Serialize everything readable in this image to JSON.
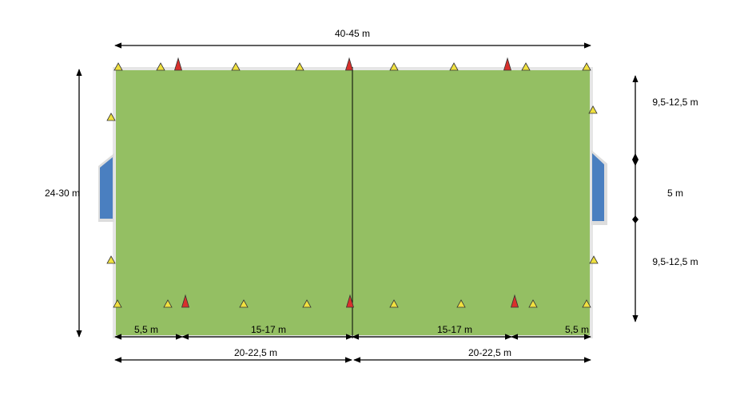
{
  "dimensions": {
    "total_length": "40-45 m",
    "total_width": "24-30 m",
    "side_upper": "9,5-12,5 m",
    "goal_width": "5 m",
    "side_lower": "9,5-12,5 m",
    "left_zone": "5,5 m",
    "left_middle": "15-17 m",
    "right_middle": "15-17 m",
    "right_zone": "5,5 m",
    "left_half": "20-22,5 m",
    "right_half": "20-22,5 m"
  }
}
